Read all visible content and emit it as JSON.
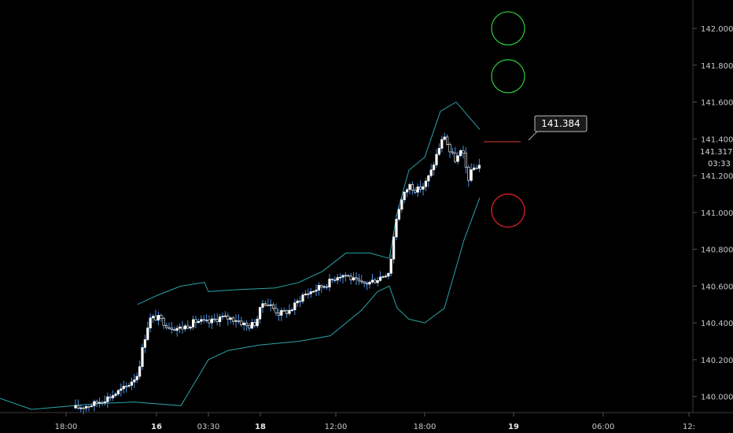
{
  "chart_data": {
    "type": "candlestick",
    "ylim": [
      139.93,
      142.12
    ],
    "y_ticks": [
      "142.000",
      "141.800",
      "141.600",
      "141.400",
      "141.200",
      "141.000",
      "140.800",
      "140.600",
      "140.400",
      "140.200",
      "140.000"
    ],
    "x_ticks": [
      {
        "label": "18:00",
        "bold": false
      },
      {
        "label": "16",
        "bold": true
      },
      {
        "label": "03:30",
        "bold": false
      },
      {
        "label": "18",
        "bold": true
      },
      {
        "label": "12:00",
        "bold": false
      },
      {
        "label": "18:00",
        "bold": false
      },
      {
        "label": "19",
        "bold": true
      },
      {
        "label": "06:00",
        "bold": false
      },
      {
        "label": "12:",
        "bold": false
      }
    ],
    "current_price": {
      "value": "141.317",
      "countdown": "03:33"
    },
    "callout": {
      "value": 141.384,
      "label": "141.384"
    },
    "target_circles": [
      {
        "price": 142.0,
        "color": "#2ecc40"
      },
      {
        "price": 141.74,
        "color": "#2ecc40"
      },
      {
        "price": 141.01,
        "color": "#e8202a"
      }
    ],
    "colors": {
      "background": "#000000",
      "candle_up": "#ffffff",
      "candle_down": "#ffffff",
      "wick": "#4a8fe0",
      "band": "#2aa3a8",
      "callout_line": "#c0392b",
      "axis_text": "#c8c8c8"
    }
  }
}
